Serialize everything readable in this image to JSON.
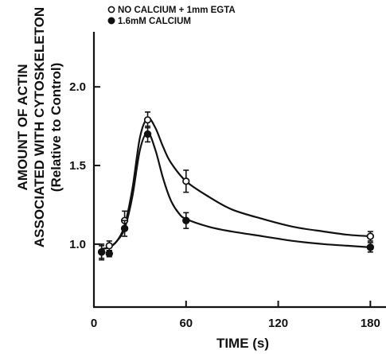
{
  "chart_data": {
    "type": "line",
    "xlabel": "TIME (s)",
    "ylabel_lines": [
      "AMOUNT OF ACTIN",
      "ASSOCIATED WITH CYTOSKELETON",
      "(Relative to Control)"
    ],
    "xlim": [
      0,
      185
    ],
    "ylim": [
      0.6,
      2.35
    ],
    "xticks": [
      0,
      60,
      120,
      180
    ],
    "yticks": [
      1.0,
      1.5,
      2.0
    ],
    "xtick_labels": [
      "0",
      "60",
      "120",
      "180"
    ],
    "ytick_labels": [
      "1.0",
      "1.5",
      "2.0"
    ],
    "legend_position": "top-left",
    "series": [
      {
        "name": "NO CALCIUM + 1mm EGTA",
        "marker": "open-circle",
        "points": [
          {
            "x": 5,
            "y": 0.95,
            "err": 0.05
          },
          {
            "x": 10,
            "y": 0.99,
            "err": 0.03
          },
          {
            "x": 20,
            "y": 1.15,
            "err": 0.06
          },
          {
            "x": 35,
            "y": 1.79,
            "err": 0.05
          },
          {
            "x": 60,
            "y": 1.4,
            "err": 0.07
          },
          {
            "x": 180,
            "y": 1.05,
            "err": 0.03
          }
        ]
      },
      {
        "name": "1.6mM CALCIUM",
        "marker": "filled-circle",
        "points": [
          {
            "x": 5,
            "y": 0.95,
            "err": 0.04
          },
          {
            "x": 10,
            "y": 0.94,
            "err": 0.02
          },
          {
            "x": 20,
            "y": 1.1,
            "err": 0.05
          },
          {
            "x": 35,
            "y": 1.7,
            "err": 0.05
          },
          {
            "x": 60,
            "y": 1.15,
            "err": 0.05
          },
          {
            "x": 180,
            "y": 0.98,
            "err": 0.03
          }
        ]
      }
    ],
    "curves": [
      {
        "series": "NO CALCIUM + 1mm EGTA",
        "x": [
          5,
          10,
          15,
          20,
          25,
          30,
          35,
          40,
          45,
          50,
          60,
          75,
          90,
          110,
          130,
          150,
          165,
          180
        ],
        "y": [
          0.97,
          0.98,
          1.02,
          1.12,
          1.35,
          1.68,
          1.8,
          1.74,
          1.62,
          1.52,
          1.4,
          1.3,
          1.22,
          1.16,
          1.11,
          1.08,
          1.06,
          1.05
        ]
      },
      {
        "series": "1.6mM CALCIUM",
        "x": [
          5,
          10,
          15,
          20,
          25,
          30,
          35,
          40,
          45,
          50,
          55,
          60,
          75,
          90,
          110,
          130,
          150,
          165,
          180
        ],
        "y": [
          0.97,
          0.98,
          1.02,
          1.1,
          1.3,
          1.6,
          1.71,
          1.6,
          1.42,
          1.28,
          1.2,
          1.16,
          1.11,
          1.08,
          1.05,
          1.02,
          1.0,
          0.99,
          0.98
        ]
      }
    ]
  }
}
